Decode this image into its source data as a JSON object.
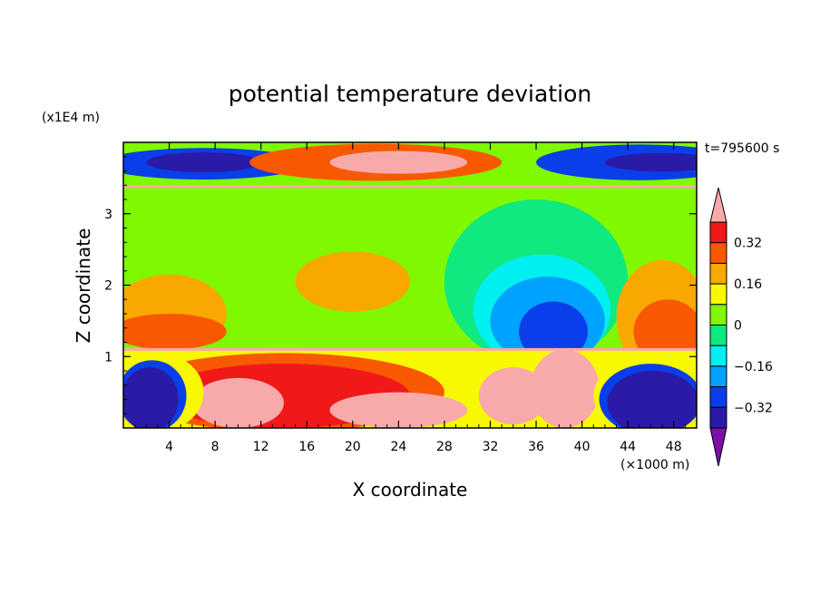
{
  "chart_data": {
    "type": "heatmap",
    "title": "potential temperature deviation",
    "time_label": "t=795600 s",
    "xlabel": "X coordinate",
    "ylabel": "Z coordinate",
    "x_unit": "(×1000 m)",
    "y_unit": "(x1E4 m)",
    "x_range": [
      0,
      50
    ],
    "y_range": [
      0,
      4
    ],
    "x_ticks": [
      4,
      8,
      12,
      16,
      20,
      24,
      28,
      32,
      36,
      40,
      44,
      48
    ],
    "x_tick_labels": [
      "4",
      "8",
      "12",
      "16",
      "20",
      "24",
      "28",
      "32",
      "36",
      "40",
      "44",
      "48"
    ],
    "y_ticks": [
      1,
      2,
      3
    ],
    "y_tick_labels": [
      "1",
      "2",
      "3"
    ],
    "colorbar": {
      "levels": [
        -0.4,
        -0.32,
        -0.24,
        -0.16,
        -0.08,
        0,
        0.08,
        0.16,
        0.24,
        0.32,
        0.4
      ],
      "labels": [
        "0.32",
        "0.16",
        "0",
        "−0.16",
        "−0.32"
      ],
      "label_values": [
        0.32,
        0.16,
        0,
        -0.16,
        -0.32
      ],
      "colors": [
        "#7a10a8",
        "#2a1aa8",
        "#0a3ee8",
        "#00a2ff",
        "#00f0f0",
        "#10e880",
        "#80f800",
        "#f8f800",
        "#f8a800",
        "#f85800",
        "#f01818",
        "#f8aaaa"
      ]
    },
    "bands": [
      {
        "name": "upper",
        "z": [
          3.38,
          4.0
        ]
      },
      {
        "name": "middle",
        "z": [
          1.1,
          3.38
        ]
      },
      {
        "name": "lower",
        "z": [
          0.0,
          1.1
        ]
      }
    ],
    "regions": [
      {
        "band": "upper",
        "cx": 7,
        "cz": 3.7,
        "rx": 9,
        "rz": 0.22,
        "level": -0.32
      },
      {
        "band": "upper",
        "cx": 7,
        "cz": 3.72,
        "rx": 5,
        "rz": 0.14,
        "level": -0.4
      },
      {
        "band": "upper",
        "cx": 22,
        "cz": 3.72,
        "rx": 11,
        "rz": 0.26,
        "level": 0.24
      },
      {
        "band": "upper",
        "cx": 24,
        "cz": 3.72,
        "rx": 6,
        "rz": 0.16,
        "level": 0.4
      },
      {
        "band": "upper",
        "cx": 45,
        "cz": 3.72,
        "rx": 9,
        "rz": 0.25,
        "level": -0.32
      },
      {
        "band": "upper",
        "cx": 47,
        "cz": 3.72,
        "rx": 5,
        "rz": 0.13,
        "level": -0.4
      },
      {
        "band": "middle",
        "cx": 4,
        "cz": 1.6,
        "rx": 5,
        "rz": 0.55,
        "level": 0.16
      },
      {
        "band": "middle",
        "cx": 4,
        "cz": 1.35,
        "rx": 5,
        "rz": 0.25,
        "level": 0.24
      },
      {
        "band": "middle",
        "cx": 20,
        "cz": 2.05,
        "rx": 5,
        "rz": 0.42,
        "level": 0.16
      },
      {
        "band": "middle",
        "cx": 36,
        "cz": 2.05,
        "rx": 8,
        "rz": 1.15,
        "level": -0.08
      },
      {
        "band": "middle",
        "cx": 36.5,
        "cz": 1.65,
        "rx": 6,
        "rz": 0.78,
        "level": -0.16
      },
      {
        "band": "middle",
        "cx": 37,
        "cz": 1.5,
        "rx": 5,
        "rz": 0.62,
        "level": -0.24
      },
      {
        "band": "middle",
        "cx": 37.5,
        "cz": 1.35,
        "rx": 3,
        "rz": 0.42,
        "level": -0.32
      },
      {
        "band": "middle",
        "cx": 47,
        "cz": 1.55,
        "rx": 4,
        "rz": 0.8,
        "level": 0.16
      },
      {
        "band": "middle",
        "cx": 47.5,
        "cz": 1.35,
        "rx": 3,
        "rz": 0.45,
        "level": 0.24
      },
      {
        "band": "lower",
        "cx": 14,
        "cz": 0.5,
        "rx": 14,
        "rz": 0.55,
        "level": 0.24
      },
      {
        "band": "lower",
        "cx": 14,
        "cz": 0.45,
        "rx": 11,
        "rz": 0.45,
        "level": 0.32
      },
      {
        "band": "lower",
        "cx": 10,
        "cz": 0.35,
        "rx": 4,
        "rz": 0.35,
        "level": 0.4
      },
      {
        "band": "lower",
        "cx": 24,
        "cz": 0.25,
        "rx": 6,
        "rz": 0.25,
        "level": 0.4
      },
      {
        "band": "lower",
        "cx": 34,
        "cz": 0.45,
        "rx": 3,
        "rz": 0.4,
        "level": 0.4
      },
      {
        "band": "lower",
        "cx": 38.5,
        "cz": 0.55,
        "rx": 3,
        "rz": 0.55,
        "level": 0.4
      },
      {
        "band": "lower",
        "cx": 3,
        "cz": 0.5,
        "rx": 4,
        "rz": 0.55,
        "level": 0.08
      },
      {
        "band": "lower",
        "cx": 2.5,
        "cz": 0.45,
        "rx": 3,
        "rz": 0.5,
        "level": -0.32
      },
      {
        "band": "lower",
        "cx": 2.3,
        "cz": 0.4,
        "rx": 2.5,
        "rz": 0.45,
        "level": -0.4
      },
      {
        "band": "lower",
        "cx": 46,
        "cz": 0.45,
        "rx": 5,
        "rz": 0.55,
        "level": 0.08
      },
      {
        "band": "lower",
        "cx": 46,
        "cz": 0.4,
        "rx": 4.5,
        "rz": 0.5,
        "level": -0.32
      },
      {
        "band": "lower",
        "cx": 46.2,
        "cz": 0.35,
        "rx": 4,
        "rz": 0.45,
        "level": -0.4
      }
    ]
  }
}
